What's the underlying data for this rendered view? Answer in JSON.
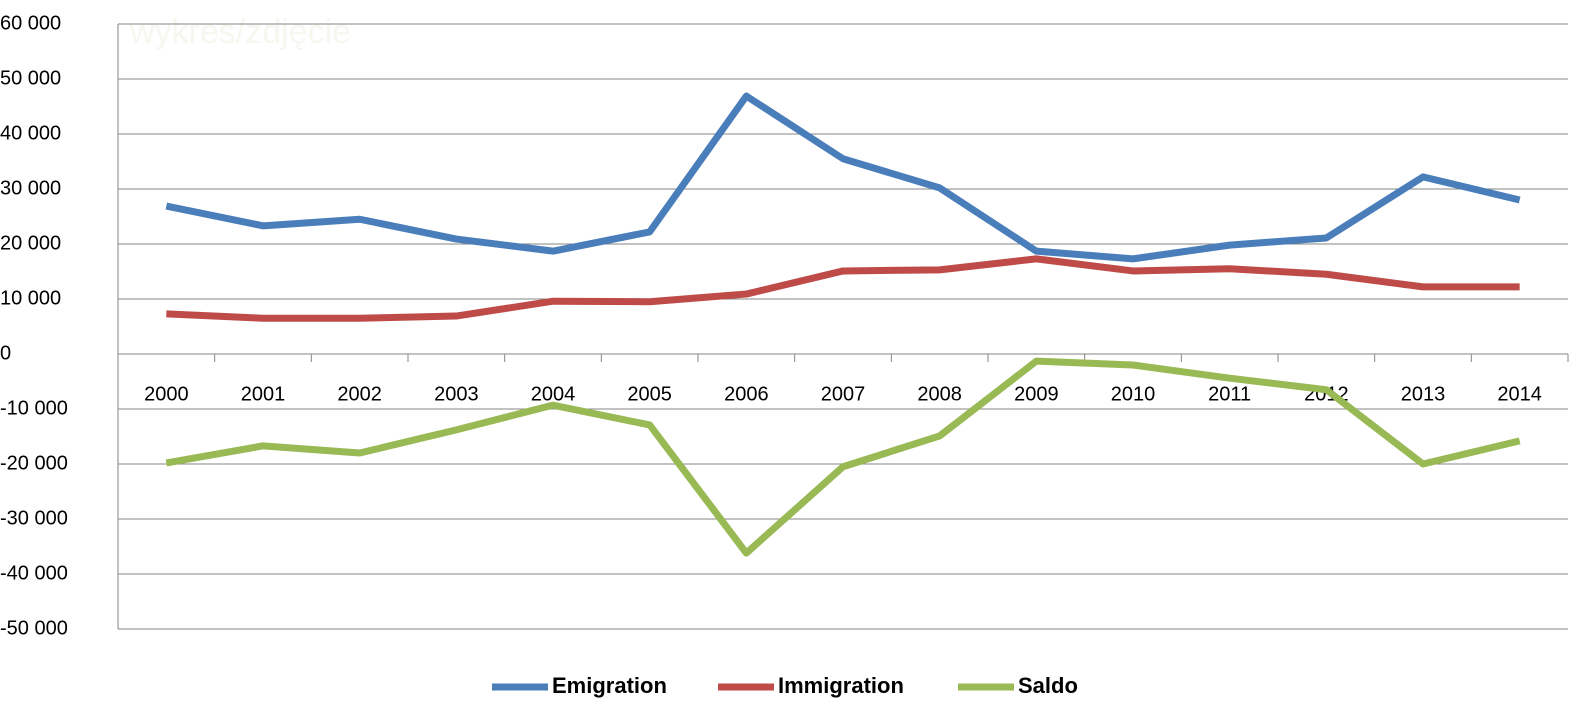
{
  "chart_data": {
    "type": "line",
    "annotation": "wykres/zdjęcie",
    "categories": [
      "2000",
      "2001",
      "2002",
      "2003",
      "2004",
      "2005",
      "2006",
      "2007",
      "2008",
      "2009",
      "2010",
      "2011",
      "2012",
      "2013",
      "2014"
    ],
    "series": [
      {
        "name": "Emigration",
        "color": "#4a7ebb",
        "values": [
          26900,
          23300,
          24500,
          20900,
          18700,
          22200,
          46900,
          35500,
          30200,
          18700,
          17300,
          19800,
          21100,
          32200,
          28000
        ]
      },
      {
        "name": "Immigration",
        "color": "#be4b48",
        "values": [
          7300,
          6500,
          6500,
          6900,
          9600,
          9500,
          10900,
          15100,
          15300,
          17300,
          15100,
          15500,
          14500,
          12200,
          12200
        ]
      },
      {
        "name": "Saldo",
        "color": "#98b954",
        "values": [
          -19800,
          -16700,
          -18000,
          -13800,
          -9300,
          -12900,
          -36200,
          -20500,
          -14900,
          -1300,
          -2000,
          -4400,
          -6500,
          -20000,
          -15800
        ]
      }
    ],
    "ylim": [
      -50000,
      60000
    ],
    "yticks": [
      {
        "value": -50000,
        "label": "-50 000"
      },
      {
        "value": -40000,
        "label": "-40 000"
      },
      {
        "value": -30000,
        "label": "-30 000"
      },
      {
        "value": -20000,
        "label": "-20 000"
      },
      {
        "value": -10000,
        "label": "-10 000"
      },
      0,
      {
        "value": 10000,
        "label": "10 000"
      },
      {
        "value": 20000,
        "label": "20 000"
      },
      {
        "value": 30000,
        "label": "30 000"
      },
      {
        "value": 40000,
        "label": "40 000"
      },
      {
        "value": 50000,
        "label": "50 000"
      },
      {
        "value": 60000,
        "label": "60 000"
      }
    ],
    "grid": true,
    "legend": "bottom"
  }
}
